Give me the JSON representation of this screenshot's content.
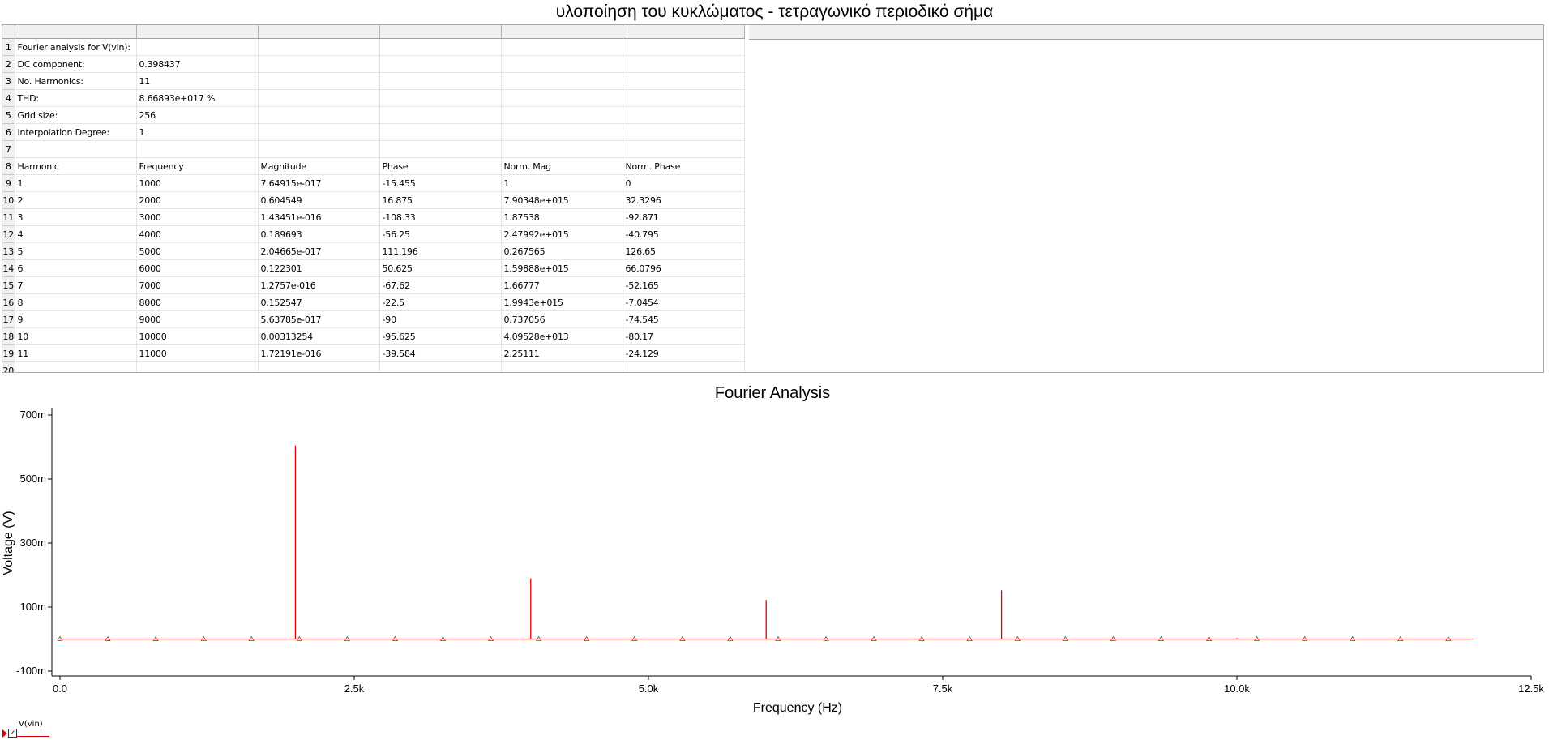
{
  "title": "υλοποίηση του κυκλώματος -  τετραγωνικό περιοδικό σήμα",
  "sheet": {
    "rows": [
      [
        "Fourier analysis for V(vin):",
        "",
        "",
        "",
        "",
        ""
      ],
      [
        "DC component:",
        "0.398437",
        "",
        "",
        "",
        ""
      ],
      [
        "No. Harmonics:",
        "11",
        "",
        "",
        "",
        ""
      ],
      [
        "THD:",
        "8.66893e+017 %",
        "",
        "",
        "",
        ""
      ],
      [
        "Grid size:",
        "256",
        "",
        "",
        "",
        ""
      ],
      [
        "Interpolation Degree:",
        "1",
        "",
        "",
        "",
        ""
      ],
      [
        "",
        "",
        "",
        "",
        "",
        ""
      ],
      [
        "Harmonic",
        "Frequency",
        "Magnitude",
        "Phase",
        "Norm. Mag",
        "Norm. Phase"
      ],
      [
        "1",
        "1000",
        "7.64915e-017",
        "-15.455",
        "1",
        "0"
      ],
      [
        "2",
        "2000",
        "0.604549",
        "16.875",
        "7.90348e+015",
        "32.3296"
      ],
      [
        "3",
        "3000",
        "1.43451e-016",
        "-108.33",
        "1.87538",
        "-92.871"
      ],
      [
        "4",
        "4000",
        "0.189693",
        "-56.25",
        "2.47992e+015",
        "-40.795"
      ],
      [
        "5",
        "5000",
        "2.04665e-017",
        "111.196",
        "0.267565",
        "126.65"
      ],
      [
        "6",
        "6000",
        "0.122301",
        "50.625",
        "1.59888e+015",
        "66.0796"
      ],
      [
        "7",
        "7000",
        "1.2757e-016",
        "-67.62",
        "1.66777",
        "-52.165"
      ],
      [
        "8",
        "8000",
        "0.152547",
        "-22.5",
        "1.9943e+015",
        "-7.0454"
      ],
      [
        "9",
        "9000",
        "5.63785e-017",
        "-90",
        "0.737056",
        "-74.545"
      ],
      [
        "10",
        "10000",
        "0.00313254",
        "-95.625",
        "4.09528e+013",
        "-80.17"
      ],
      [
        "11",
        "11000",
        "1.72191e-016",
        "-39.584",
        "2.25111",
        "-24.129"
      ],
      [
        "",
        "",
        "",
        "",
        "",
        ""
      ]
    ]
  },
  "chart_data": {
    "type": "bar",
    "title": "Fourier Analysis",
    "xlabel": "Frequency (Hz)",
    "ylabel": "Voltage (V)",
    "xlim": [
      0,
      12500
    ],
    "ylim": [
      -0.1,
      0.7
    ],
    "x_ticks": [
      {
        "value": 0,
        "label": "0.0"
      },
      {
        "value": 2500,
        "label": "2.5k"
      },
      {
        "value": 5000,
        "label": "5.0k"
      },
      {
        "value": 7500,
        "label": "7.5k"
      },
      {
        "value": 10000,
        "label": "10.0k"
      },
      {
        "value": 12500,
        "label": "12.5k"
      }
    ],
    "y_ticks": [
      {
        "value": 0.7,
        "label": "700m"
      },
      {
        "value": 0.5,
        "label": "500m"
      },
      {
        "value": 0.3,
        "label": "300m"
      },
      {
        "value": 0.1,
        "label": "100m"
      },
      {
        "value": -0.1,
        "label": "-100m"
      }
    ],
    "series": [
      {
        "name": "V(vin)",
        "color": "#e00000",
        "x": [
          1000,
          2000,
          3000,
          4000,
          5000,
          6000,
          7000,
          8000,
          9000,
          10000,
          11000
        ],
        "values": [
          7.64915e-17,
          0.604549,
          1.43451e-16,
          0.189693,
          2.04665e-17,
          0.122301,
          1.2757e-16,
          0.152547,
          5.63785e-17,
          0.00313254,
          1.72191e-16
        ]
      }
    ],
    "baseline_end": 12000,
    "marker_count": 30,
    "grid": false,
    "legend": "bottom-left"
  }
}
